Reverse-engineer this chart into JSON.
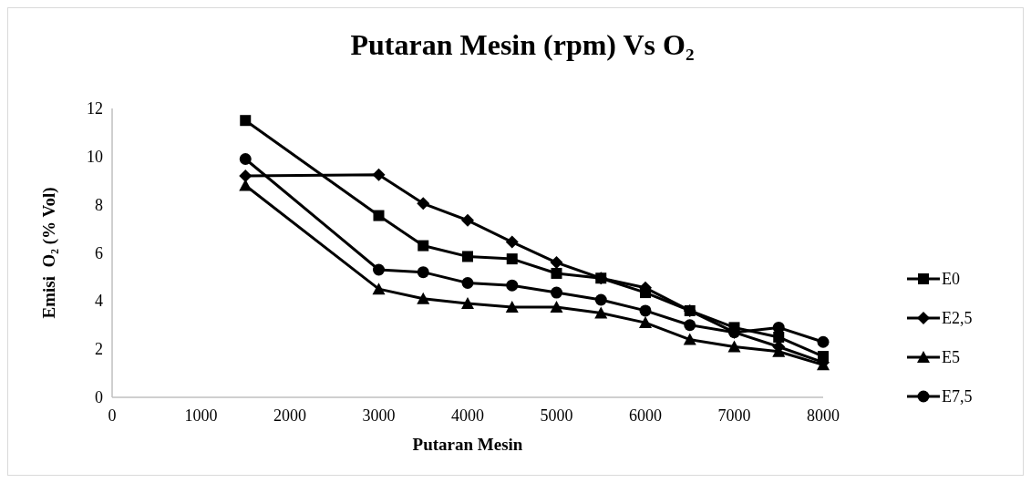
{
  "chart_data": {
    "type": "line",
    "title": "Putaran Mesin (rpm) Vs O₂",
    "xlabel": "Putaran Mesin",
    "ylabel": "Emisi  O₂ (% Vol)",
    "x": [
      1500,
      3000,
      3500,
      4000,
      4500,
      5000,
      5500,
      6000,
      6500,
      7000,
      7500,
      8000
    ],
    "series": [
      {
        "name": "E0",
        "color": "#000000",
        "marker": "square",
        "values": [
          11.5,
          7.55,
          6.3,
          5.85,
          5.75,
          5.15,
          4.95,
          4.35,
          3.6,
          2.9,
          2.5,
          1.7
        ]
      },
      {
        "name": "E2,5",
        "color": "#000000",
        "marker": "diamond",
        "values": [
          9.2,
          9.25,
          8.05,
          7.35,
          6.45,
          5.6,
          4.95,
          4.55,
          3.6,
          2.7,
          2.1,
          1.45
        ]
      },
      {
        "name": "E5",
        "color": "#000000",
        "marker": "triangle",
        "values": [
          8.8,
          4.5,
          4.1,
          3.9,
          3.75,
          3.75,
          3.5,
          3.1,
          2.4,
          2.1,
          1.9,
          1.35
        ]
      },
      {
        "name": "E7,5",
        "color": "#000000",
        "marker": "circle",
        "values": [
          9.9,
          5.3,
          5.2,
          4.75,
          4.65,
          4.35,
          4.05,
          3.6,
          3.0,
          2.7,
          2.9,
          2.3
        ]
      }
    ],
    "xlim": [
      0,
      8000
    ],
    "xticks": [
      0,
      1000,
      2000,
      3000,
      4000,
      5000,
      6000,
      7000,
      8000
    ],
    "ylim": [
      0,
      12
    ],
    "yticks": [
      0,
      2,
      4,
      6,
      8,
      10,
      12
    ],
    "grid": false,
    "legend": "right"
  }
}
